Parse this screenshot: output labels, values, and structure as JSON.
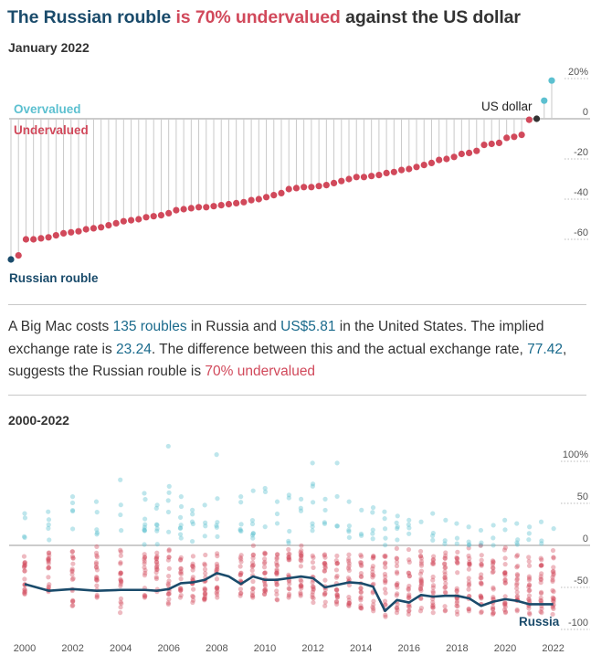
{
  "header": {
    "title_part1": "The Russian rouble",
    "title_part2": " is 70% undervalued",
    "title_part3": " against the US dollar",
    "subtitle": "January 2022"
  },
  "paragraph": {
    "p1": "A Big Mac costs ",
    "p2": "135 roubles",
    "p3": " in Russia and ",
    "p4": "US$5.81",
    "p5": " in the United States. The implied exchange rate is ",
    "p6": "23.24",
    "p7": ". The difference between this and the actual exchange rate, ",
    "p8": "77.42",
    "p9": ", suggests the Russian rouble is ",
    "p10": "70% undervalued"
  },
  "colors": {
    "overvalued": "#5cc0d0",
    "undervalued": "#d1495b",
    "russia": "#1a4b6b",
    "usd": "#333333",
    "grid": "#c8c8c8"
  },
  "chart_data": [
    {
      "type": "scatter",
      "title": "January 2022",
      "ylabel": "",
      "ylim": [
        -70,
        22
      ],
      "yticks": [
        20,
        0,
        -20,
        -40,
        -60
      ],
      "ytick_labels": [
        "20%",
        "0",
        "-20",
        "-40",
        "-60"
      ],
      "legend": [
        "Overvalued",
        "Undervalued"
      ],
      "annotations": [
        "Russian rouble",
        "US dollar"
      ],
      "values": [
        -70,
        -68,
        -60,
        -60,
        -59.5,
        -59,
        -58,
        -57,
        -56.5,
        -56,
        -55,
        -54.5,
        -54,
        -53,
        -52,
        -51,
        -50.5,
        -50,
        -49,
        -48.5,
        -48,
        -47,
        -45.5,
        -45,
        -44.5,
        -44,
        -44,
        -43.5,
        -43,
        -42.5,
        -42,
        -41.5,
        -40.5,
        -40,
        -39,
        -38,
        -37,
        -35,
        -34.5,
        -34,
        -34,
        -33.5,
        -33,
        -32,
        -31,
        -30,
        -29,
        -29,
        -28.5,
        -28,
        -27,
        -26.5,
        -25.5,
        -25,
        -24,
        -23,
        -22,
        -20.5,
        -20,
        -19,
        -17.5,
        -17,
        -16,
        -13,
        -12.5,
        -12,
        -9.5,
        -9,
        -8,
        -0.5,
        0,
        9,
        19
      ],
      "highlight": {
        "Russian rouble": -70,
        "US dollar": 0
      }
    },
    {
      "type": "scatter",
      "title": "2000-2022",
      "ylim": [
        -100,
        110
      ],
      "yticks": [
        100,
        50,
        0,
        -50,
        -100
      ],
      "ytick_labels": [
        "100%",
        "50",
        "0",
        "-50",
        "-100"
      ],
      "xticks": [
        2000,
        2002,
        2004,
        2006,
        2008,
        2010,
        2012,
        2014,
        2016,
        2018,
        2020,
        2022
      ],
      "series_labels": [
        "Russia"
      ],
      "russia_line": {
        "x": [
          2000,
          2001,
          2002,
          2003,
          2004,
          2005,
          2005.5,
          2006,
          2006.5,
          2007,
          2007.5,
          2008,
          2008.5,
          2009,
          2009.5,
          2010,
          2010.5,
          2011,
          2011.5,
          2012,
          2012.5,
          2013,
          2013.5,
          2014,
          2014.5,
          2015,
          2015.5,
          2016,
          2016.5,
          2017,
          2017.5,
          2018,
          2018.5,
          2019,
          2019.5,
          2020,
          2020.5,
          2021,
          2021.5,
          2022
        ],
        "y": [
          -46,
          -54,
          -52,
          -54,
          -53,
          -53,
          -54,
          -52,
          -45,
          -44,
          -41,
          -33,
          -37,
          -46,
          -37,
          -41,
          -41,
          -39,
          -37,
          -39,
          -50,
          -47,
          -44,
          -45,
          -49,
          -78,
          -65,
          -68,
          -59,
          -61,
          -60,
          -60,
          -63,
          -72,
          -67,
          -64,
          -66,
          -70,
          -70,
          -70
        ]
      },
      "range_by_year": {
        "x": [
          2000,
          2001,
          2002,
          2003,
          2004,
          2005,
          2005.5,
          2006,
          2006.5,
          2007,
          2007.5,
          2008,
          2009,
          2009.5,
          2010,
          2010.5,
          2011,
          2011.5,
          2012,
          2012.5,
          2013,
          2013.5,
          2014,
          2014.5,
          2015,
          2015.5,
          2016,
          2016.5,
          2017,
          2017.5,
          2018,
          2018.5,
          2019,
          2019.5,
          2020,
          2020.5,
          2021,
          2021.5,
          2022
        ],
        "max": [
          38,
          40,
          58,
          52,
          78,
          62,
          48,
          118,
          58,
          42,
          48,
          108,
          58,
          65,
          68,
          52,
          60,
          55,
          98,
          55,
          98,
          52,
          42,
          45,
          40,
          35,
          30,
          28,
          38,
          30,
          26,
          22,
          18,
          24,
          30,
          26,
          22,
          28,
          20
        ],
        "min": [
          -58,
          -55,
          -72,
          -62,
          -80,
          -62,
          -55,
          -70,
          -62,
          -68,
          -65,
          -62,
          -60,
          -62,
          -58,
          -65,
          -62,
          -60,
          -68,
          -72,
          -70,
          -72,
          -75,
          -78,
          -85,
          -80,
          -82,
          -78,
          -80,
          -78,
          -82,
          -78,
          -80,
          -82,
          -80,
          -78,
          -82,
          -80,
          -82
        ]
      }
    }
  ],
  "axes": {
    "chart1_ticks": [
      "20%",
      "0",
      "-20",
      "-40",
      "-60"
    ],
    "chart2_ticks": [
      "100%",
      "50",
      "0",
      "-50",
      "-100"
    ],
    "chart2_years": [
      "2000",
      "2002",
      "2004",
      "2006",
      "2008",
      "2010",
      "2012",
      "2014",
      "2016",
      "2018",
      "2020",
      "2022"
    ]
  },
  "labels": {
    "overvalued": "Overvalued",
    "undervalued": "Undervalued",
    "russian_rouble": "Russian rouble",
    "us_dollar": "US dollar",
    "section2": "2000-2022",
    "russia": "Russia"
  }
}
